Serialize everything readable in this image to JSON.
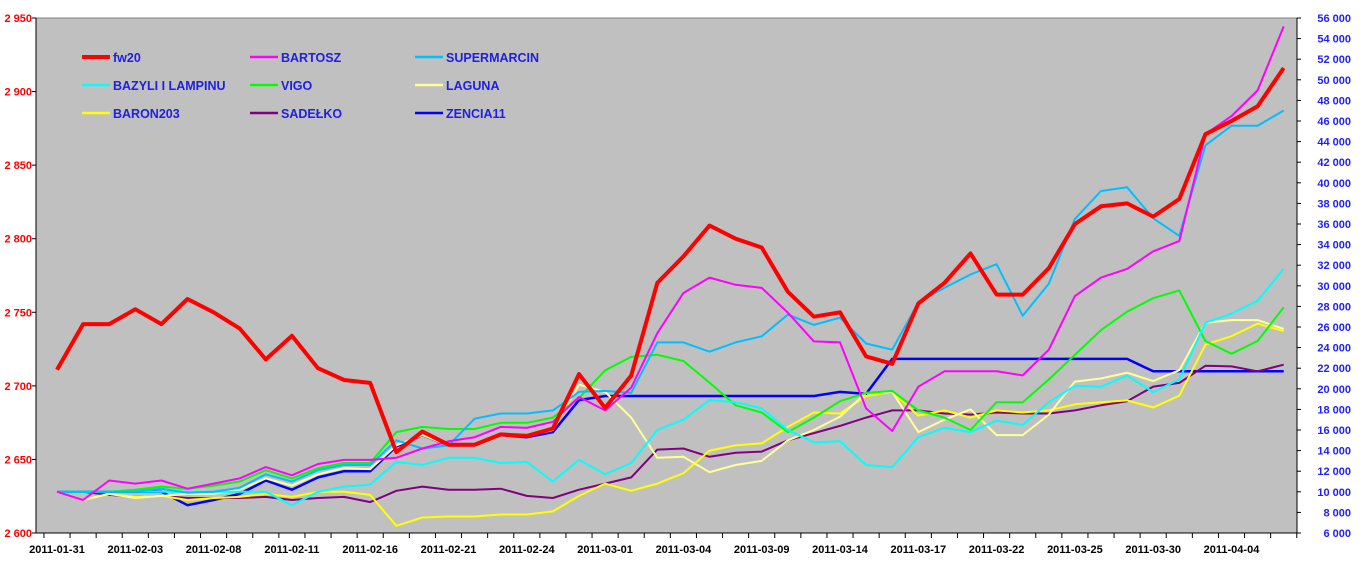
{
  "chart_data": {
    "type": "line",
    "title": "",
    "legend_position": "top-left",
    "left_axis": {
      "ylim": [
        2600,
        2950
      ],
      "step": 50,
      "tick_labels": [
        "2 600",
        "2 650",
        "2 700",
        "2 750",
        "2 800",
        "2 850",
        "2 900",
        "2 950"
      ],
      "color": "#ff0000"
    },
    "right_axis": {
      "ylim": [
        6000,
        56000
      ],
      "step": 2000,
      "tick_labels": [
        "6 000",
        "8 000",
        "10 000",
        "12 000",
        "14 000",
        "16 000",
        "18 000",
        "20 000",
        "22 000",
        "24 000",
        "26 000",
        "28 000",
        "30 000",
        "32 000",
        "34 000",
        "36 000",
        "38 000",
        "40 000",
        "42 000",
        "44 000",
        "46 000",
        "48 000",
        "50 000",
        "52 000",
        "54 000",
        "56 000"
      ],
      "color": "#2020ff"
    },
    "point_count": 48,
    "x_label_every": 3,
    "x_tick_labels": [
      "2011-01-31",
      "2011-02-03",
      "2011-02-08",
      "2011-02-11",
      "2011-02-16",
      "2011-02-21",
      "2011-02-24",
      "2011-03-01",
      "2011-03-04",
      "2011-03-09",
      "2011-03-14",
      "2011-03-17",
      "2011-03-22",
      "2011-03-25",
      "2011-03-30",
      "2011-04-04"
    ],
    "series": [
      {
        "name": "fw20",
        "axis": "left",
        "color": "#ff0000",
        "values": [
          2711,
          2742,
          2742,
          2752,
          2742,
          2759,
          2750,
          2739,
          2718,
          2734,
          2712,
          2704,
          2702,
          2655,
          2669,
          2660,
          2660,
          2667,
          2666,
          2671,
          2708,
          2685,
          2707,
          2770,
          2788,
          2809,
          2800,
          2794,
          2764,
          2747,
          2750,
          2720,
          2715,
          2756,
          2770,
          2790,
          2762,
          2762,
          2780,
          2810,
          2822,
          2824,
          2815,
          2827,
          2871,
          2880,
          2890,
          2916
        ]
      },
      {
        "name": "BARTOSZ",
        "axis": "right",
        "color": "#ff00ff",
        "values": [
          10000,
          9200,
          11100,
          10800,
          11100,
          10300,
          10800,
          11300,
          12400,
          11600,
          12700,
          13100,
          13100,
          13300,
          14200,
          14900,
          15300,
          16300,
          16200,
          16800,
          19200,
          17900,
          20100,
          25400,
          29300,
          30800,
          30100,
          29800,
          27400,
          24600,
          24500,
          18100,
          15900,
          20200,
          21700,
          21700,
          21700,
          21300,
          23800,
          29000,
          30800,
          31640,
          33350,
          34340,
          44710,
          46480,
          48970,
          55180
        ]
      },
      {
        "name": "SUPERMARCIN",
        "axis": "right",
        "color": "#00bfff",
        "values": [
          10000,
          10000,
          10000,
          10000,
          10300,
          9900,
          10000,
          10400,
          11700,
          11000,
          12100,
          12600,
          12600,
          15000,
          14200,
          14500,
          17100,
          17600,
          17600,
          17900,
          19700,
          19800,
          19600,
          24500,
          24500,
          23600,
          24500,
          25100,
          27200,
          26200,
          26900,
          24400,
          23800,
          28400,
          29800,
          31100,
          32100,
          27100,
          30200,
          36500,
          39200,
          39560,
          36550,
          34840,
          43640,
          45530,
          45530,
          47020
        ]
      },
      {
        "name": "BAZYLI I LAMPINU",
        "axis": "right",
        "color": "#00ffff",
        "values": [
          10000,
          10000,
          10000,
          10000,
          10000,
          10000,
          10000,
          10000,
          10000,
          8700,
          10000,
          10500,
          10700,
          12900,
          12600,
          13300,
          13300,
          12800,
          12900,
          11000,
          13100,
          11700,
          12800,
          16000,
          17000,
          18900,
          18700,
          18100,
          16000,
          14800,
          14900,
          12600,
          12400,
          15300,
          16200,
          15800,
          16900,
          16500,
          18700,
          20300,
          20200,
          21280,
          19680,
          20920,
          26420,
          27300,
          28550,
          31640
        ]
      },
      {
        "name": "VIGO",
        "axis": "right",
        "color": "#00ff00",
        "values": [
          10000,
          10000,
          10000,
          10200,
          10500,
          10300,
          10600,
          11000,
          12100,
          11300,
          12300,
          12800,
          12800,
          15800,
          16300,
          16100,
          16100,
          16700,
          16700,
          17200,
          19100,
          21800,
          23100,
          23300,
          22700,
          20600,
          18400,
          17700,
          15800,
          17200,
          18800,
          19600,
          19800,
          17900,
          17200,
          16000,
          18700,
          18700,
          20900,
          23300,
          25700,
          27490,
          28800,
          29550,
          24640,
          23400,
          24640,
          27910
        ]
      },
      {
        "name": "LAGUNA",
        "axis": "right",
        "color": "#ffff99",
        "values": [
          10000,
          9200,
          9800,
          9400,
          9600,
          9800,
          9800,
          10200,
          11300,
          10600,
          11700,
          12300,
          12200,
          14500,
          15500,
          14500,
          14500,
          15600,
          15400,
          16000,
          20400,
          19700,
          17200,
          13300,
          13400,
          11900,
          12600,
          13000,
          15000,
          16000,
          17300,
          19600,
          19700,
          15800,
          17000,
          18000,
          15500,
          15500,
          17500,
          20700,
          21000,
          21560,
          20750,
          21810,
          26420,
          26670,
          26670,
          25820
        ]
      },
      {
        "name": "BARON203",
        "axis": "right",
        "color": "#ffff00",
        "values": [
          10000,
          9200,
          9800,
          9500,
          9600,
          9200,
          9400,
          9500,
          9800,
          9500,
          10000,
          10000,
          9700,
          6700,
          7500,
          7600,
          7600,
          7800,
          7800,
          8100,
          9600,
          10800,
          10100,
          10800,
          11800,
          14000,
          14500,
          14700,
          16300,
          17700,
          17600,
          19300,
          19700,
          17400,
          17900,
          17200,
          17900,
          17700,
          17900,
          18500,
          18700,
          18870,
          18190,
          19330,
          24290,
          25110,
          26330,
          25600
        ]
      },
      {
        "name": "SADEŁKO",
        "axis": "right",
        "color": "#800080",
        "values": [
          10000,
          10000,
          9700,
          9500,
          9600,
          9400,
          9400,
          9400,
          9500,
          9200,
          9400,
          9500,
          9000,
          10100,
          10500,
          10200,
          10200,
          10300,
          9600,
          9400,
          10200,
          10800,
          11400,
          14100,
          14200,
          13400,
          13800,
          13900,
          15000,
          15700,
          16400,
          17200,
          17900,
          17900,
          17600,
          17500,
          17700,
          17600,
          17600,
          17900,
          18400,
          18800,
          20210,
          20570,
          22230,
          22170,
          21700,
          22340
        ]
      },
      {
        "name": "ZENCIA11",
        "axis": "right",
        "color": "#0000ff",
        "values": [
          10000,
          10000,
          10000,
          10000,
          10000,
          8700,
          9200,
          9800,
          11100,
          10200,
          11400,
          12000,
          12000,
          14400,
          15500,
          14500,
          14500,
          15500,
          15300,
          15800,
          18900,
          19300,
          19300,
          19300,
          19300,
          19300,
          19300,
          19300,
          19300,
          19300,
          19700,
          19500,
          22900,
          22900,
          22900,
          22900,
          22900,
          22900,
          22900,
          22900,
          22900,
          22900,
          21700,
          21700,
          21700,
          21700,
          21700,
          21700
        ]
      }
    ]
  }
}
